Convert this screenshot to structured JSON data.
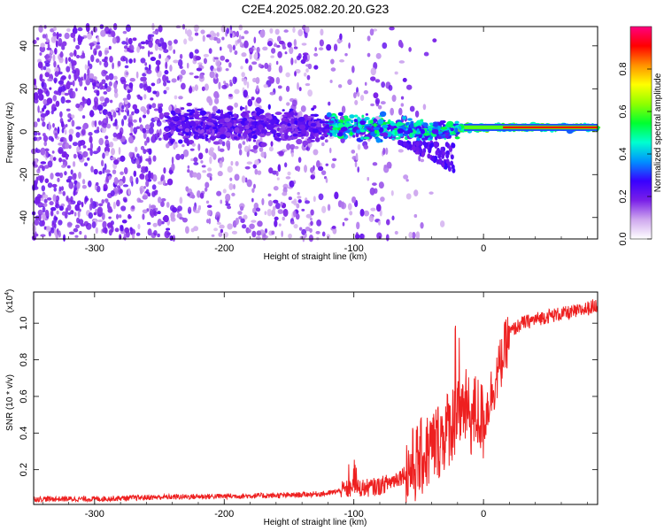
{
  "title": "C2E4.2025.082.20.20.G23",
  "chart_data": [
    {
      "type": "heatmap",
      "name": "spectrogram",
      "xlabel": "Height of straight line (km)",
      "ylabel": "Frequency (Hz)",
      "xlim": [
        -347,
        88
      ],
      "ylim": [
        -50,
        49
      ],
      "xticks": [
        -300,
        -200,
        -100,
        0
      ],
      "xtick_labels": [
        "-300",
        "-200",
        "-100",
        "0"
      ],
      "yticks": [
        -40,
        -20,
        0,
        20,
        40
      ],
      "ytick_labels": [
        "-40",
        "-20",
        "0",
        "20",
        "40"
      ],
      "colorbar": {
        "label": "Normalized spectral amplitude",
        "range": [
          0,
          1
        ],
        "ticks": [
          0.0,
          0.2,
          0.4,
          0.6,
          0.8
        ],
        "tick_labels": [
          "0.0",
          "0.2",
          "0.4",
          "0.6",
          "0.8"
        ],
        "colormap": [
          "#ffffff",
          "#cfa8ee",
          "#7a20e8",
          "#3800ff",
          "#0090ff",
          "#00ffd0",
          "#00ff30",
          "#90ff00",
          "#ffff00",
          "#ff9000",
          "#ff0000",
          "#ff0080"
        ]
      },
      "ridge": [
        {
          "x": -240,
          "f": 3
        },
        {
          "x": -150,
          "f": 3
        },
        {
          "x": -100,
          "f": 2
        },
        {
          "x": -60,
          "f": 1
        },
        {
          "x": -30,
          "f": 1
        },
        {
          "x": 0,
          "f": 2
        },
        {
          "x": 88,
          "f": 2
        }
      ]
    },
    {
      "type": "line",
      "name": "snr",
      "xlabel": "Height of straight line (km)",
      "ylabel": "SNR (10 * v/v)",
      "yscale_label": "(x10",
      "yscale_exp": "4",
      "yscale_suffix": ")",
      "xlim": [
        -347,
        88
      ],
      "ylim": [
        0.01,
        1.17
      ],
      "xticks": [
        -300,
        -200,
        -100,
        0
      ],
      "xtick_labels": [
        "-300",
        "-200",
        "-100",
        "0"
      ],
      "yticks": [
        0.2,
        0.4,
        0.6,
        0.8,
        1.0
      ],
      "ytick_labels": [
        "0.2",
        "0.4",
        "0.6",
        "0.8",
        "1.0"
      ],
      "line_color": "#ee2020",
      "series": [
        {
          "name": "SNR",
          "x": [
            -347,
            -300,
            -250,
            -200,
            -150,
            -120,
            -100,
            -90,
            -80,
            -70,
            -60,
            -50,
            -40,
            -30,
            -25,
            -20,
            -15,
            -10,
            -5,
            0,
            5,
            10,
            15,
            20,
            30,
            40,
            50,
            60,
            70,
            80,
            88
          ],
          "y": [
            0.04,
            0.04,
            0.05,
            0.055,
            0.06,
            0.07,
            0.1,
            0.1,
            0.11,
            0.14,
            0.18,
            0.25,
            0.32,
            0.4,
            0.45,
            0.5,
            0.55,
            0.48,
            0.52,
            0.45,
            0.6,
            0.7,
            0.82,
            0.95,
            1.0,
            1.02,
            1.04,
            1.05,
            1.06,
            1.08,
            1.1
          ]
        }
      ]
    }
  ]
}
